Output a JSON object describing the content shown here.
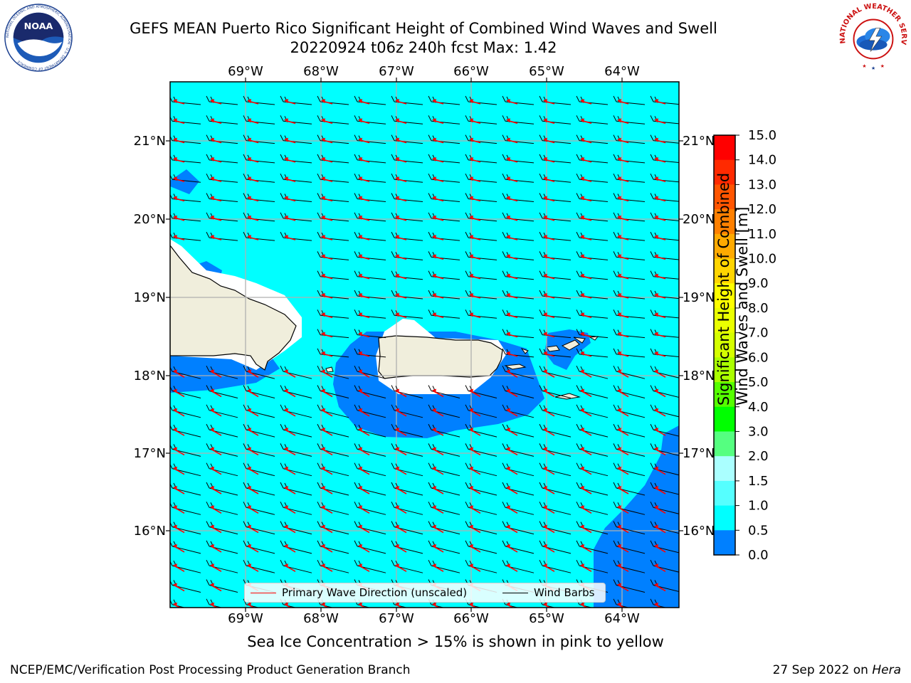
{
  "header": {
    "title_line1": "GEFS MEAN Puerto Rico Significant Height of Combined Wind Waves and Swell",
    "title_line2": "20220924 t06z 240h fcst   Max: 1.42"
  },
  "logos": {
    "noaa": {
      "text": "NOAA",
      "ring_text": "NATIONAL OCEANIC AND ATMOSPHERIC ADMINISTRATION · U.S. DEPARTMENT OF COMMERCE"
    },
    "nws": {
      "ring_text": "NATIONAL WEATHER SERVICE"
    }
  },
  "map": {
    "lon_labels": [
      "69°W",
      "68°W",
      "67°W",
      "66°W",
      "65°W",
      "64°W"
    ],
    "lat_labels": [
      "21°N",
      "20°N",
      "19°N",
      "18°N",
      "17°N",
      "16°N"
    ],
    "colors": {
      "ocean_1_15": "#00ffff",
      "ocean_05_1": "#0080ff",
      "land": "#f0eedc",
      "nodata": "#ffffff",
      "wave_arrow": "#ff0000",
      "wind_barb": "#000000",
      "grid": "#b0b0b0"
    }
  },
  "legend": {
    "primary_wave": "Primary Wave Direction (unscaled)",
    "wind_barbs": "Wind Barbs"
  },
  "colorbar": {
    "label": "Significant Height of Combined Wind Waves and Swell [m]",
    "label_line1": "Significant Height of Combined",
    "label_line2": "Wind Waves and Swell [m]",
    "ticks": [
      "15.0",
      "14.0",
      "13.0",
      "12.0",
      "11.0",
      "10.0",
      "9.0",
      "8.0",
      "7.0",
      "6.0",
      "5.0",
      "4.0",
      "3.0",
      "2.0",
      "1.5",
      "1.0",
      "0.5",
      "0.0"
    ],
    "bin_colors": [
      "#ff0000",
      "#ff2a00",
      "#ff5500",
      "#ff8000",
      "#ffaa00",
      "#ffd500",
      "#ffff00",
      "#eaff00",
      "#d5ff00",
      "#aaff00",
      "#55ff00",
      "#00ff00",
      "#55ff80",
      "#aaffff",
      "#55ffff",
      "#00ffff",
      "#0080ff",
      "#0000ff"
    ]
  },
  "notes": {
    "sea_ice": "Sea Ice Concentration > 15% is shown in pink to yellow"
  },
  "footer": {
    "left": "NCEP/EMC/Verification Post Processing Product Generation Branch",
    "right_date": "27 Sep 2022 on ",
    "right_host": "Hera"
  }
}
